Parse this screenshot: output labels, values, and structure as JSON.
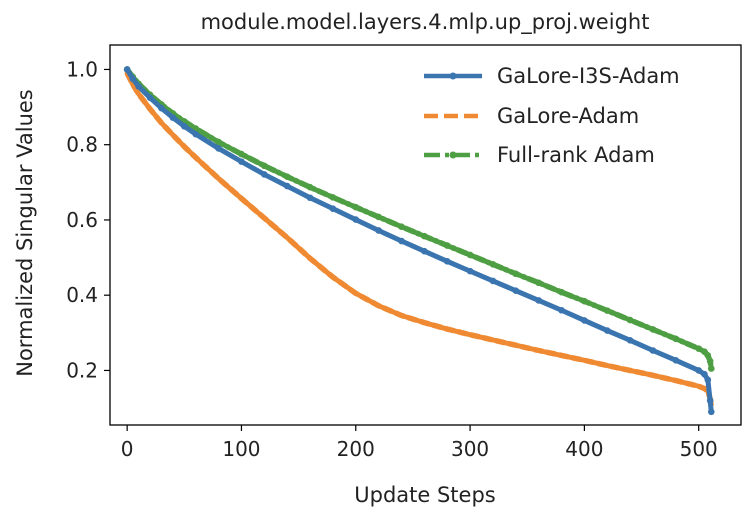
{
  "chart_data": {
    "type": "line",
    "title": "module.model.layers.4.mlp.up_proj.weight",
    "xlabel": "Update Steps",
    "ylabel": "Normalized Singular Values",
    "xlim": [
      -15,
      537
    ],
    "ylim": [
      0.055,
      1.065
    ],
    "xticks": [
      0,
      100,
      200,
      300,
      400,
      500
    ],
    "xtick_labels": [
      "0",
      "100",
      "200",
      "300",
      "400",
      "500"
    ],
    "yticks": [
      0.2,
      0.4,
      0.6,
      0.8,
      1.0
    ],
    "ytick_labels": [
      "0.2",
      "0.4",
      "0.6",
      "0.8",
      "1.0"
    ],
    "grid": false,
    "legend_position": "top-right",
    "series": [
      {
        "name": "GaLore-I3S-Adam",
        "color": "#3a75b0",
        "style": "solid-dots",
        "x": [
          0,
          5,
          10,
          20,
          30,
          40,
          50,
          60,
          80,
          100,
          120,
          140,
          160,
          180,
          200,
          220,
          240,
          260,
          280,
          300,
          320,
          340,
          360,
          380,
          400,
          420,
          440,
          460,
          480,
          500,
          505,
          508,
          510,
          511
        ],
        "y": [
          1.0,
          0.975,
          0.955,
          0.925,
          0.897,
          0.872,
          0.849,
          0.828,
          0.79,
          0.755,
          0.721,
          0.69,
          0.659,
          0.63,
          0.601,
          0.572,
          0.544,
          0.517,
          0.49,
          0.464,
          0.438,
          0.412,
          0.386,
          0.36,
          0.333,
          0.306,
          0.28,
          0.253,
          0.227,
          0.2,
          0.19,
          0.175,
          0.12,
          0.09
        ]
      },
      {
        "name": "GaLore-Adam",
        "color": "#ef8a33",
        "style": "dashed",
        "x": [
          0,
          5,
          10,
          20,
          30,
          40,
          50,
          60,
          80,
          100,
          120,
          140,
          160,
          180,
          200,
          220,
          240,
          260,
          280,
          300,
          320,
          340,
          360,
          380,
          400,
          420,
          440,
          460,
          480,
          500,
          505,
          508,
          510,
          511
        ],
        "y": [
          0.99,
          0.96,
          0.935,
          0.895,
          0.858,
          0.826,
          0.795,
          0.766,
          0.71,
          0.657,
          0.605,
          0.553,
          0.498,
          0.448,
          0.405,
          0.372,
          0.346,
          0.327,
          0.31,
          0.295,
          0.281,
          0.267,
          0.253,
          0.24,
          0.227,
          0.213,
          0.2,
          0.187,
          0.173,
          0.158,
          0.152,
          0.145,
          0.125,
          0.11
        ]
      },
      {
        "name": "Full-rank Adam",
        "color": "#4e9e43",
        "style": "dash-dot-dots",
        "x": [
          0,
          5,
          10,
          20,
          30,
          40,
          50,
          60,
          80,
          100,
          120,
          140,
          160,
          180,
          200,
          220,
          240,
          260,
          280,
          300,
          320,
          340,
          360,
          380,
          400,
          420,
          440,
          460,
          480,
          500,
          505,
          508,
          510,
          511
        ],
        "y": [
          1.0,
          0.98,
          0.962,
          0.933,
          0.907,
          0.883,
          0.862,
          0.843,
          0.807,
          0.775,
          0.744,
          0.715,
          0.687,
          0.66,
          0.634,
          0.608,
          0.582,
          0.557,
          0.532,
          0.507,
          0.482,
          0.457,
          0.433,
          0.408,
          0.384,
          0.359,
          0.334,
          0.309,
          0.284,
          0.258,
          0.25,
          0.24,
          0.225,
          0.205
        ]
      }
    ]
  }
}
